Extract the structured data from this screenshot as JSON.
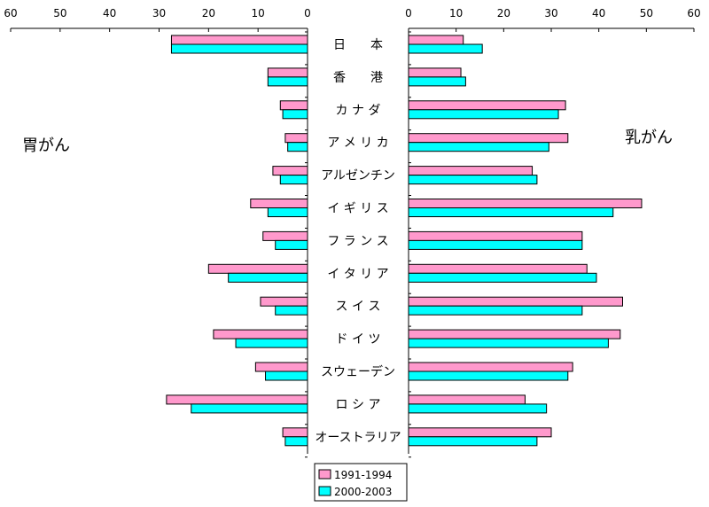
{
  "chart_data": {
    "type": "bar",
    "orientation": "horizontal-butterfly",
    "left_label": "胃がん",
    "right_label": "乳がん",
    "left_ticks": [
      "60",
      "50",
      "40",
      "30",
      "20",
      "10",
      "0"
    ],
    "right_ticks": [
      "0",
      "10",
      "20",
      "30",
      "40",
      "50",
      "60"
    ],
    "xlim": [
      0,
      60
    ],
    "grid": false,
    "legend_position": "bottom-center",
    "categories": [
      "日　　本",
      "香　　港",
      "カ ナ ダ",
      "ア メ リ カ",
      "アルゼンチン",
      "イ ギ リ ス",
      "フ ラ ン ス",
      "イ タ リ ア",
      "ス イ ス",
      "ド イ ツ",
      "スウェーデン",
      "ロ シ ア",
      "オーストラリア"
    ],
    "series": [
      {
        "name": "1991-1994",
        "color": "#ff99cc",
        "stomach": [
          27.5,
          8,
          5.5,
          4.5,
          7,
          11.5,
          9,
          20,
          9.5,
          19,
          10.5,
          28.5,
          5
        ],
        "breast": [
          11.5,
          11,
          33,
          33.5,
          26,
          49,
          36.5,
          37.5,
          45,
          44.5,
          34.5,
          24.5,
          30
        ]
      },
      {
        "name": "2000-2003",
        "color": "#00ffff",
        "stomach": [
          27.5,
          8,
          5,
          4,
          5.5,
          8,
          6.5,
          16,
          6.5,
          14.5,
          8.5,
          23.5,
          4.5
        ],
        "breast": [
          15.5,
          12,
          31.5,
          29.5,
          27,
          43,
          36.5,
          39.5,
          36.5,
          42,
          33.5,
          29,
          27
        ]
      }
    ]
  }
}
